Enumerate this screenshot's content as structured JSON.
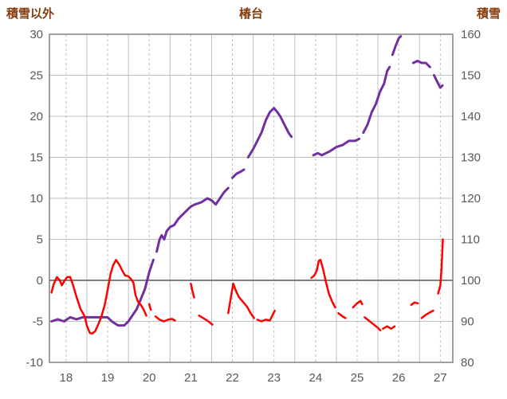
{
  "chart_data": {
    "type": "line",
    "title": "椿台",
    "left_axis": {
      "label": "積雪以外",
      "min": -10,
      "max": 30,
      "ticks": [
        30,
        25,
        20,
        15,
        10,
        5,
        0,
        -5,
        -10
      ]
    },
    "right_axis": {
      "label": "積雪",
      "min": 80,
      "max": 160,
      "ticks": [
        160,
        150,
        140,
        130,
        120,
        110,
        100,
        90,
        80
      ]
    },
    "x_axis": {
      "min": 17.6,
      "max": 27.3,
      "ticks": [
        18,
        19,
        20,
        21,
        22,
        23,
        24,
        25,
        26,
        27
      ]
    },
    "style": {
      "grid_color": "#BFBFBF",
      "axis_color": "#808080",
      "zero_line_color": "#808080",
      "tick_text_color": "#595959",
      "header_text_color": "#843C0C",
      "background": "#FFFFFF"
    },
    "series": [
      {
        "name": "積雪",
        "axis": "right",
        "color": "#7030A0",
        "width": 3,
        "segments": [
          [
            [
              17.65,
              90
            ],
            [
              17.8,
              90.5
            ],
            [
              17.95,
              90
            ],
            [
              18.1,
              91
            ],
            [
              18.25,
              90.5
            ],
            [
              18.4,
              91
            ],
            [
              18.6,
              91
            ],
            [
              18.8,
              91
            ],
            [
              19.0,
              91
            ],
            [
              19.1,
              90
            ],
            [
              19.25,
              89
            ],
            [
              19.4,
              89
            ],
            [
              19.5,
              90
            ],
            [
              19.6,
              91.5
            ],
            [
              19.7,
              93
            ],
            [
              19.8,
              95.5
            ],
            [
              19.9,
              98
            ],
            [
              20.0,
              102
            ],
            [
              20.1,
              105
            ]
          ],
          [
            [
              20.18,
              107
            ],
            [
              20.25,
              110
            ],
            [
              20.3,
              111
            ],
            [
              20.36,
              110
            ],
            [
              20.42,
              112
            ],
            [
              20.5,
              113
            ],
            [
              20.6,
              113.5
            ],
            [
              20.7,
              115
            ],
            [
              20.8,
              116
            ],
            [
              20.9,
              117
            ],
            [
              21.0,
              118
            ],
            [
              21.1,
              118.5
            ],
            [
              21.25,
              119
            ],
            [
              21.4,
              120
            ],
            [
              21.5,
              119.5
            ],
            [
              21.6,
              118.5
            ],
            [
              21.7,
              120
            ],
            [
              21.8,
              121.5
            ],
            [
              21.9,
              122.5
            ]
          ],
          [
            [
              22.0,
              125
            ],
            [
              22.1,
              126
            ],
            [
              22.2,
              126.5
            ],
            [
              22.28,
              127
            ]
          ],
          [
            [
              22.38,
              130
            ],
            [
              22.5,
              132
            ],
            [
              22.6,
              134
            ],
            [
              22.7,
              136
            ],
            [
              22.8,
              139
            ],
            [
              22.9,
              141
            ],
            [
              23.0,
              142
            ],
            [
              23.08,
              141
            ],
            [
              23.15,
              140
            ],
            [
              23.25,
              138
            ],
            [
              23.35,
              136
            ],
            [
              23.42,
              135
            ]
          ],
          [
            [
              23.95,
              130.5
            ],
            [
              24.05,
              131
            ],
            [
              24.15,
              130.5
            ],
            [
              24.25,
              131
            ],
            [
              24.35,
              131.5
            ],
            [
              24.5,
              132.5
            ],
            [
              24.65,
              133
            ],
            [
              24.8,
              134
            ],
            [
              24.95,
              134
            ],
            [
              25.05,
              134.5
            ]
          ],
          [
            [
              25.15,
              136
            ],
            [
              25.25,
              138
            ],
            [
              25.35,
              141
            ],
            [
              25.45,
              143
            ],
            [
              25.55,
              146
            ],
            [
              25.65,
              148
            ],
            [
              25.72,
              151
            ],
            [
              25.78,
              152
            ]
          ],
          [
            [
              25.85,
              155
            ],
            [
              25.92,
              157
            ],
            [
              26.0,
              159
            ],
            [
              26.05,
              159.5
            ]
          ],
          [
            [
              26.35,
              153
            ],
            [
              26.45,
              153.5
            ],
            [
              26.55,
              153
            ],
            [
              26.65,
              153
            ],
            [
              26.75,
              152
            ]
          ],
          [
            [
              26.85,
              150
            ],
            [
              26.92,
              148.5
            ],
            [
              27.0,
              147
            ],
            [
              27.05,
              147.5
            ]
          ]
        ]
      },
      {
        "name": "積雪以外",
        "axis": "left",
        "color": "#FF0000",
        "width": 2.5,
        "segments": [
          [
            [
              17.65,
              -1.5
            ],
            [
              17.7,
              -0.5
            ],
            [
              17.78,
              0.4
            ],
            [
              17.85,
              0
            ],
            [
              17.9,
              -0.6
            ],
            [
              17.97,
              0
            ],
            [
              18.03,
              0.4
            ],
            [
              18.1,
              0.4
            ],
            [
              18.17,
              -0.6
            ],
            [
              18.25,
              -2
            ],
            [
              18.35,
              -3.5
            ],
            [
              18.45,
              -4.4
            ],
            [
              18.5,
              -5.5
            ],
            [
              18.57,
              -6.4
            ],
            [
              18.63,
              -6.5
            ],
            [
              18.7,
              -6.2
            ],
            [
              18.78,
              -5.3
            ],
            [
              18.85,
              -4.4
            ],
            [
              18.93,
              -3
            ],
            [
              19.0,
              -1.2
            ],
            [
              19.07,
              0.8
            ],
            [
              19.13,
              1.8
            ],
            [
              19.2,
              2.5
            ],
            [
              19.27,
              2
            ],
            [
              19.35,
              1.2
            ],
            [
              19.42,
              0.6
            ],
            [
              19.5,
              0.5
            ],
            [
              19.57,
              0.1
            ],
            [
              19.62,
              -0.3
            ],
            [
              19.67,
              -1.8
            ],
            [
              19.73,
              -2.6
            ],
            [
              19.8,
              -3
            ],
            [
              19.87,
              -3.6
            ],
            [
              19.93,
              -4.3
            ]
          ],
          [
            [
              20.0,
              -2.9
            ],
            [
              20.04,
              -3.6
            ]
          ],
          [
            [
              20.15,
              -4.4
            ],
            [
              20.25,
              -4.8
            ],
            [
              20.35,
              -5
            ],
            [
              20.45,
              -4.8
            ],
            [
              20.55,
              -4.7
            ],
            [
              20.62,
              -4.9
            ]
          ],
          [
            [
              21.0,
              -0.4
            ],
            [
              21.04,
              -1.3
            ],
            [
              21.08,
              -2.1
            ]
          ],
          [
            [
              21.2,
              -4.3
            ],
            [
              21.3,
              -4.6
            ],
            [
              21.42,
              -5
            ],
            [
              21.52,
              -5.4
            ]
          ],
          [
            [
              21.9,
              -4
            ],
            [
              21.96,
              -2.2
            ],
            [
              22.02,
              -0.4
            ],
            [
              22.08,
              -1.2
            ],
            [
              22.15,
              -2
            ],
            [
              22.25,
              -2.6
            ],
            [
              22.35,
              -3.2
            ],
            [
              22.45,
              -4.1
            ],
            [
              22.52,
              -4.6
            ]
          ],
          [
            [
              22.6,
              -4.8
            ],
            [
              22.7,
              -5
            ],
            [
              22.8,
              -4.8
            ],
            [
              22.9,
              -4.9
            ],
            [
              22.97,
              -4.2
            ],
            [
              23.02,
              -3.7
            ]
          ],
          [
            [
              23.9,
              0.3
            ],
            [
              23.97,
              0.6
            ],
            [
              24.03,
              1.2
            ],
            [
              24.08,
              2.4
            ],
            [
              24.12,
              2.5
            ],
            [
              24.18,
              1.4
            ],
            [
              24.25,
              -0.2
            ],
            [
              24.32,
              -1.6
            ],
            [
              24.4,
              -2.6
            ],
            [
              24.47,
              -3.3
            ]
          ],
          [
            [
              24.55,
              -4
            ],
            [
              24.65,
              -4.4
            ],
            [
              24.72,
              -4.6
            ]
          ],
          [
            [
              24.9,
              -3.3
            ],
            [
              25.0,
              -2.8
            ],
            [
              25.08,
              -2.5
            ],
            [
              25.12,
              -2.9
            ]
          ],
          [
            [
              25.18,
              -4.5
            ],
            [
              25.28,
              -4.9
            ],
            [
              25.38,
              -5.3
            ],
            [
              25.5,
              -5.8
            ],
            [
              25.56,
              -6.1
            ]
          ],
          [
            [
              25.62,
              -5.9
            ],
            [
              25.72,
              -5.6
            ],
            [
              25.82,
              -5.9
            ],
            [
              25.9,
              -5.6
            ]
          ],
          [
            [
              26.3,
              -3
            ],
            [
              26.38,
              -2.7
            ],
            [
              26.46,
              -2.8
            ]
          ],
          [
            [
              26.55,
              -4.6
            ],
            [
              26.65,
              -4.2
            ],
            [
              26.75,
              -3.9
            ],
            [
              26.83,
              -3.7
            ]
          ],
          [
            [
              26.95,
              -1.6
            ],
            [
              27.0,
              -0.6
            ],
            [
              27.03,
              1.5
            ],
            [
              27.06,
              5
            ]
          ]
        ]
      }
    ]
  }
}
